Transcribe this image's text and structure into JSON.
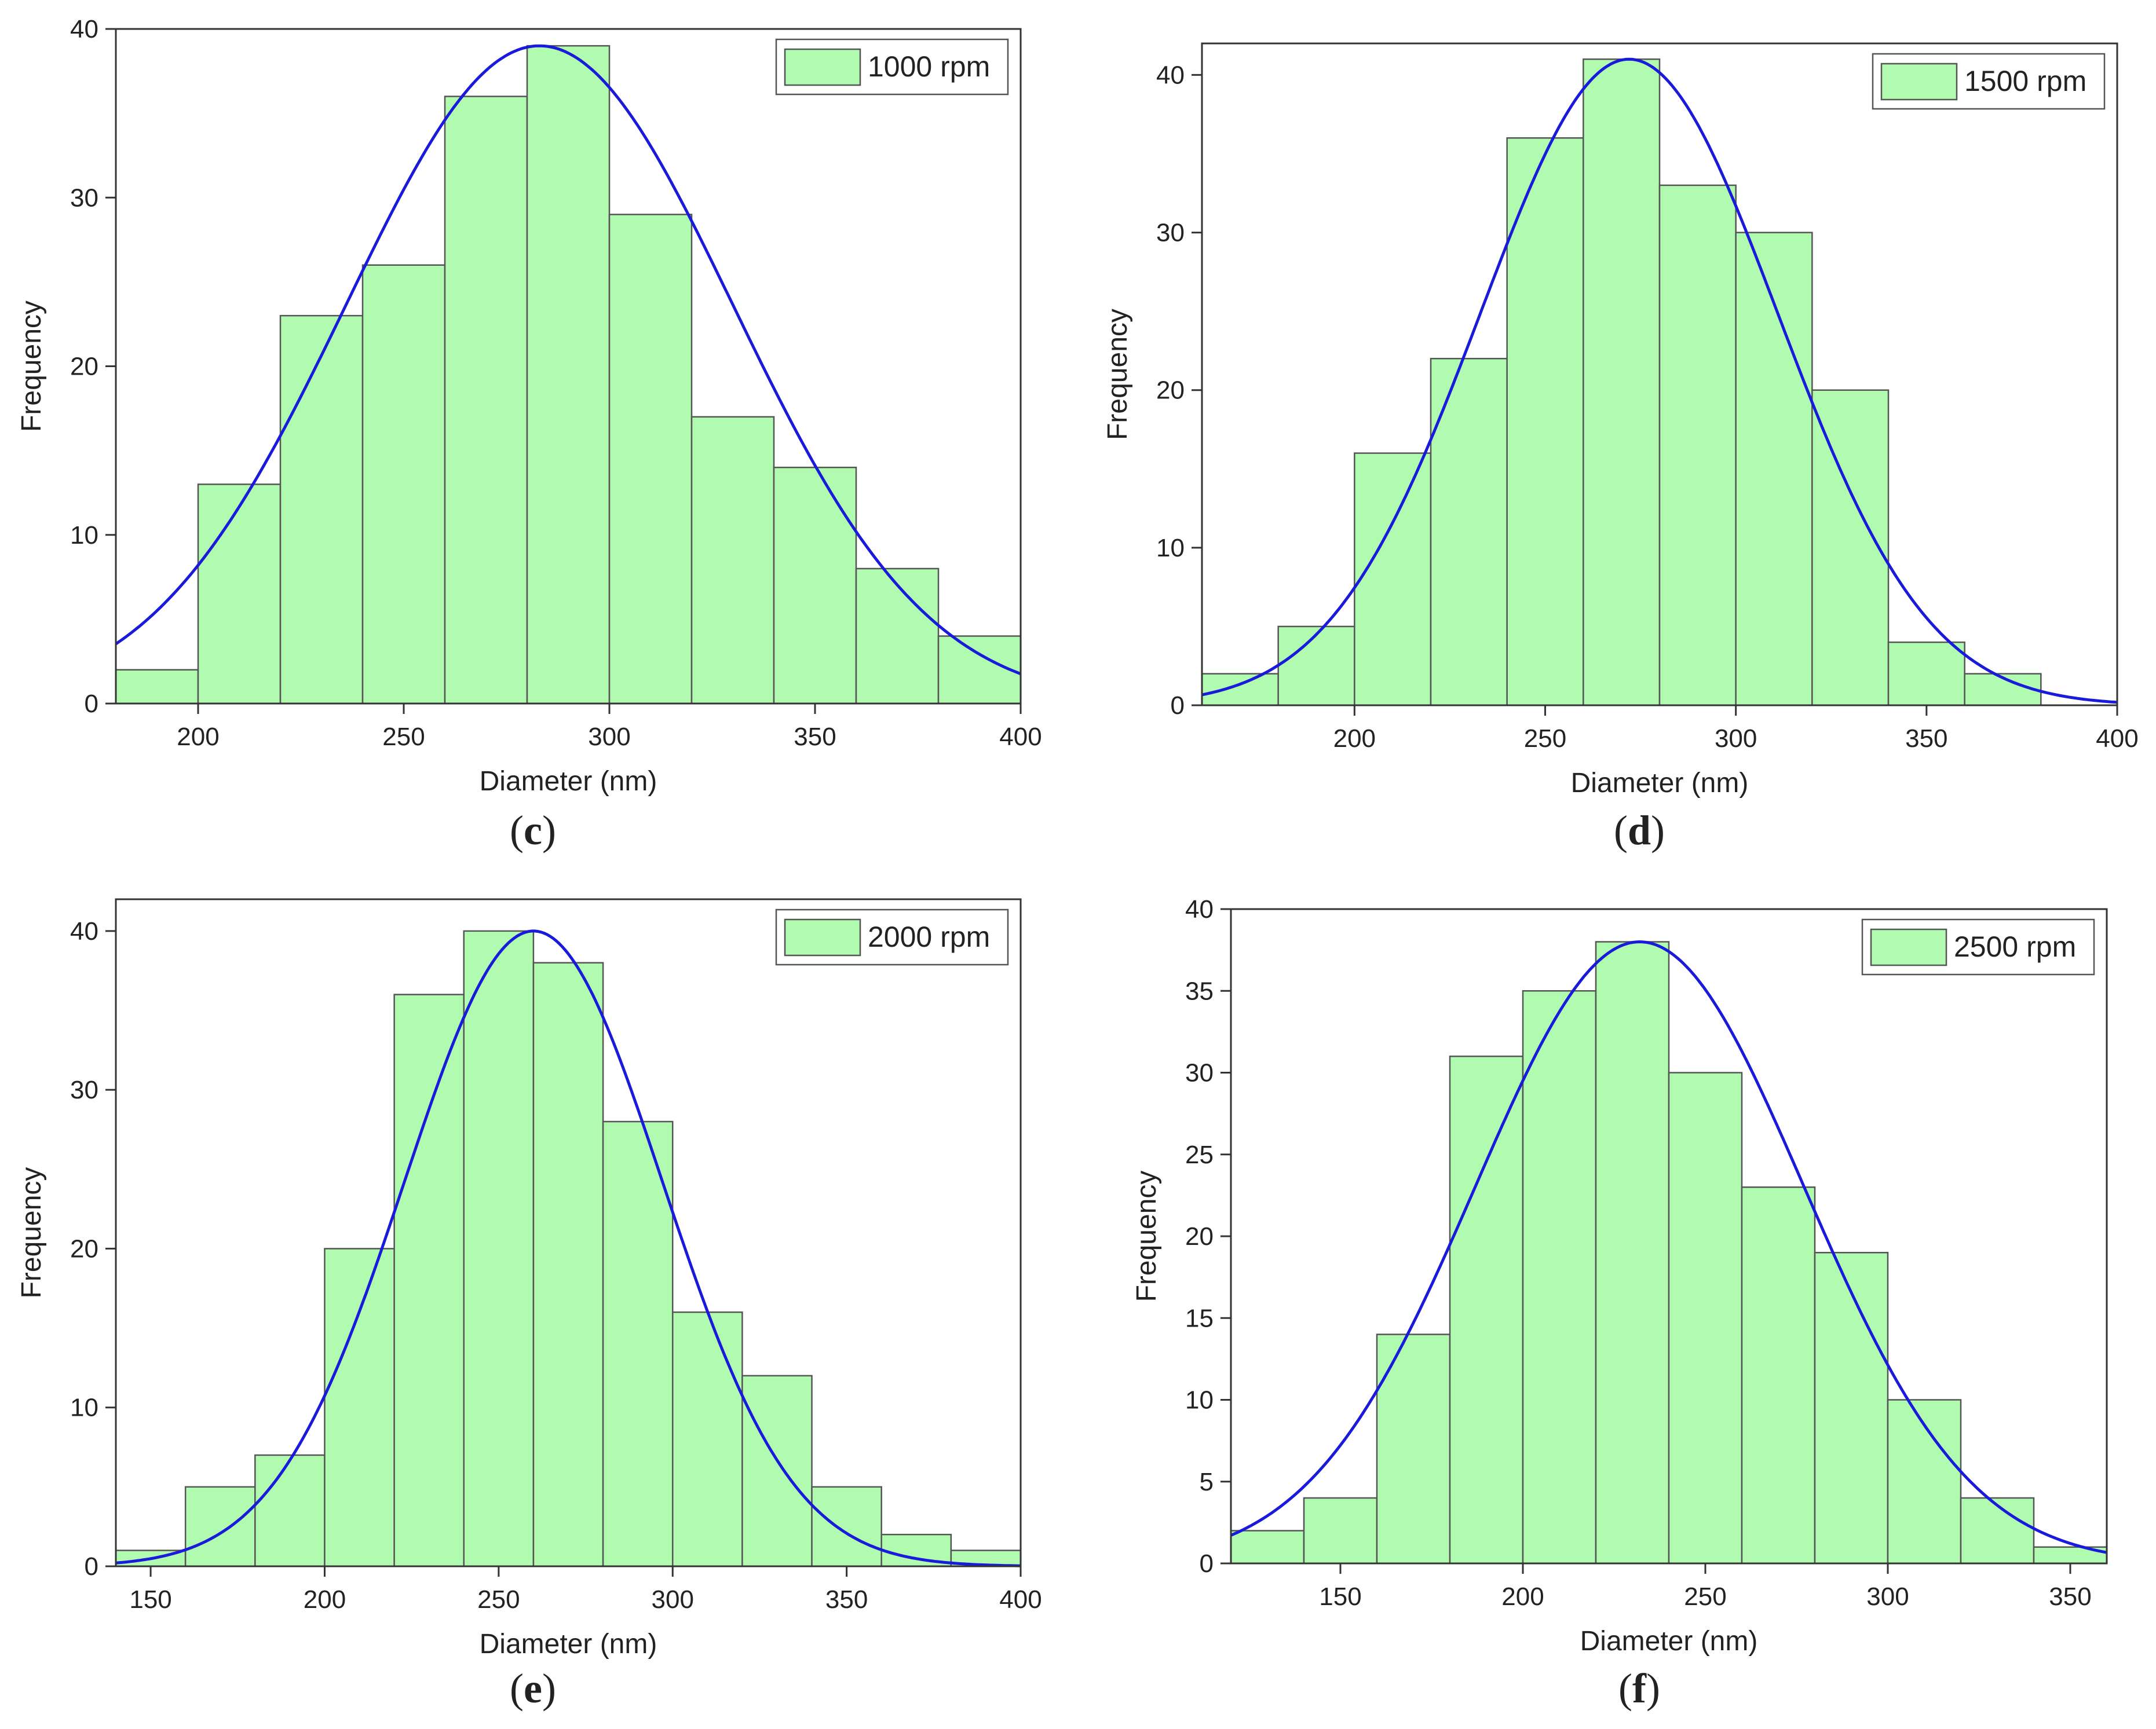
{
  "chart_data": [
    {
      "type": "bar",
      "panel": "c",
      "legend": "1000 rpm",
      "legend_position": "top-right",
      "xlabel": "Diameter (nm)",
      "ylabel": "Frequency",
      "xlim": [
        180,
        400
      ],
      "ylim": [
        0,
        40
      ],
      "xticks": [
        200,
        250,
        300,
        350,
        400
      ],
      "yticks": [
        0,
        10,
        20,
        30,
        40
      ],
      "bin_width": 20,
      "bin_starts": [
        180,
        200,
        220,
        240,
        260,
        280,
        300,
        320,
        340,
        360,
        380
      ],
      "values": [
        2,
        13,
        23,
        26,
        36,
        39,
        29,
        17,
        14,
        8,
        4
      ],
      "fit": {
        "type": "normal",
        "peak_x": 283,
        "peak_y": 39,
        "sigma": 47
      },
      "grid": false
    },
    {
      "type": "bar",
      "panel": "d",
      "legend": "1500 rpm",
      "legend_position": "top-right",
      "xlabel": "Diameter (nm)",
      "ylabel": "Frequency",
      "xlim": [
        160,
        400
      ],
      "ylim": [
        0,
        42
      ],
      "xticks": [
        200,
        250,
        300,
        350,
        400
      ],
      "yticks": [
        0,
        10,
        20,
        30,
        40
      ],
      "bin_width": 20,
      "bin_starts": [
        160,
        180,
        200,
        220,
        240,
        260,
        280,
        300,
        320,
        340,
        360
      ],
      "values": [
        2,
        5,
        16,
        22,
        36,
        41,
        33,
        30,
        20,
        4,
        2
      ],
      "fit": {
        "type": "normal",
        "peak_x": 272,
        "peak_y": 41,
        "sigma": 39
      },
      "grid": false
    },
    {
      "type": "bar",
      "panel": "e",
      "legend": "2000 rpm",
      "legend_position": "top-right",
      "xlabel": "Diameter (nm)",
      "ylabel": "Frequency",
      "xlim": [
        140,
        400
      ],
      "ylim": [
        0,
        42
      ],
      "xticks": [
        150,
        200,
        250,
        300,
        350,
        400
      ],
      "yticks": [
        0,
        10,
        20,
        30,
        40
      ],
      "bin_width": 20,
      "bin_starts": [
        140,
        160,
        180,
        200,
        220,
        240,
        260,
        280,
        300,
        320,
        340,
        360,
        380
      ],
      "values": [
        1,
        5,
        7,
        20,
        36,
        40,
        38,
        28,
        16,
        12,
        5,
        2,
        1
      ],
      "fit": {
        "type": "normal",
        "peak_x": 260,
        "peak_y": 40,
        "sigma": 37
      },
      "grid": false
    },
    {
      "type": "bar",
      "panel": "f",
      "legend": "2500 rpm",
      "legend_position": "top-right",
      "xlabel": "Diameter (nm)",
      "ylabel": "Frequency",
      "xlim": [
        120,
        360
      ],
      "ylim": [
        0,
        40
      ],
      "xticks": [
        150,
        200,
        250,
        300,
        350
      ],
      "yticks": [
        0,
        5,
        10,
        15,
        20,
        25,
        30,
        35,
        40
      ],
      "bin_width": 20,
      "bin_starts": [
        120,
        140,
        160,
        180,
        200,
        220,
        240,
        260,
        280,
        300,
        320,
        340
      ],
      "values": [
        2,
        4,
        14,
        31,
        35,
        38,
        30,
        23,
        19,
        10,
        4,
        1
      ],
      "fit": {
        "type": "normal",
        "peak_x": 232,
        "peak_y": 38,
        "sigma": 45
      },
      "grid": false
    }
  ],
  "colors": {
    "bar_fill": "#b0fbb0",
    "bar_stroke": "#555555",
    "fit_line": "#1a1adb",
    "axis": "#333333",
    "legend_border": "#555555"
  }
}
